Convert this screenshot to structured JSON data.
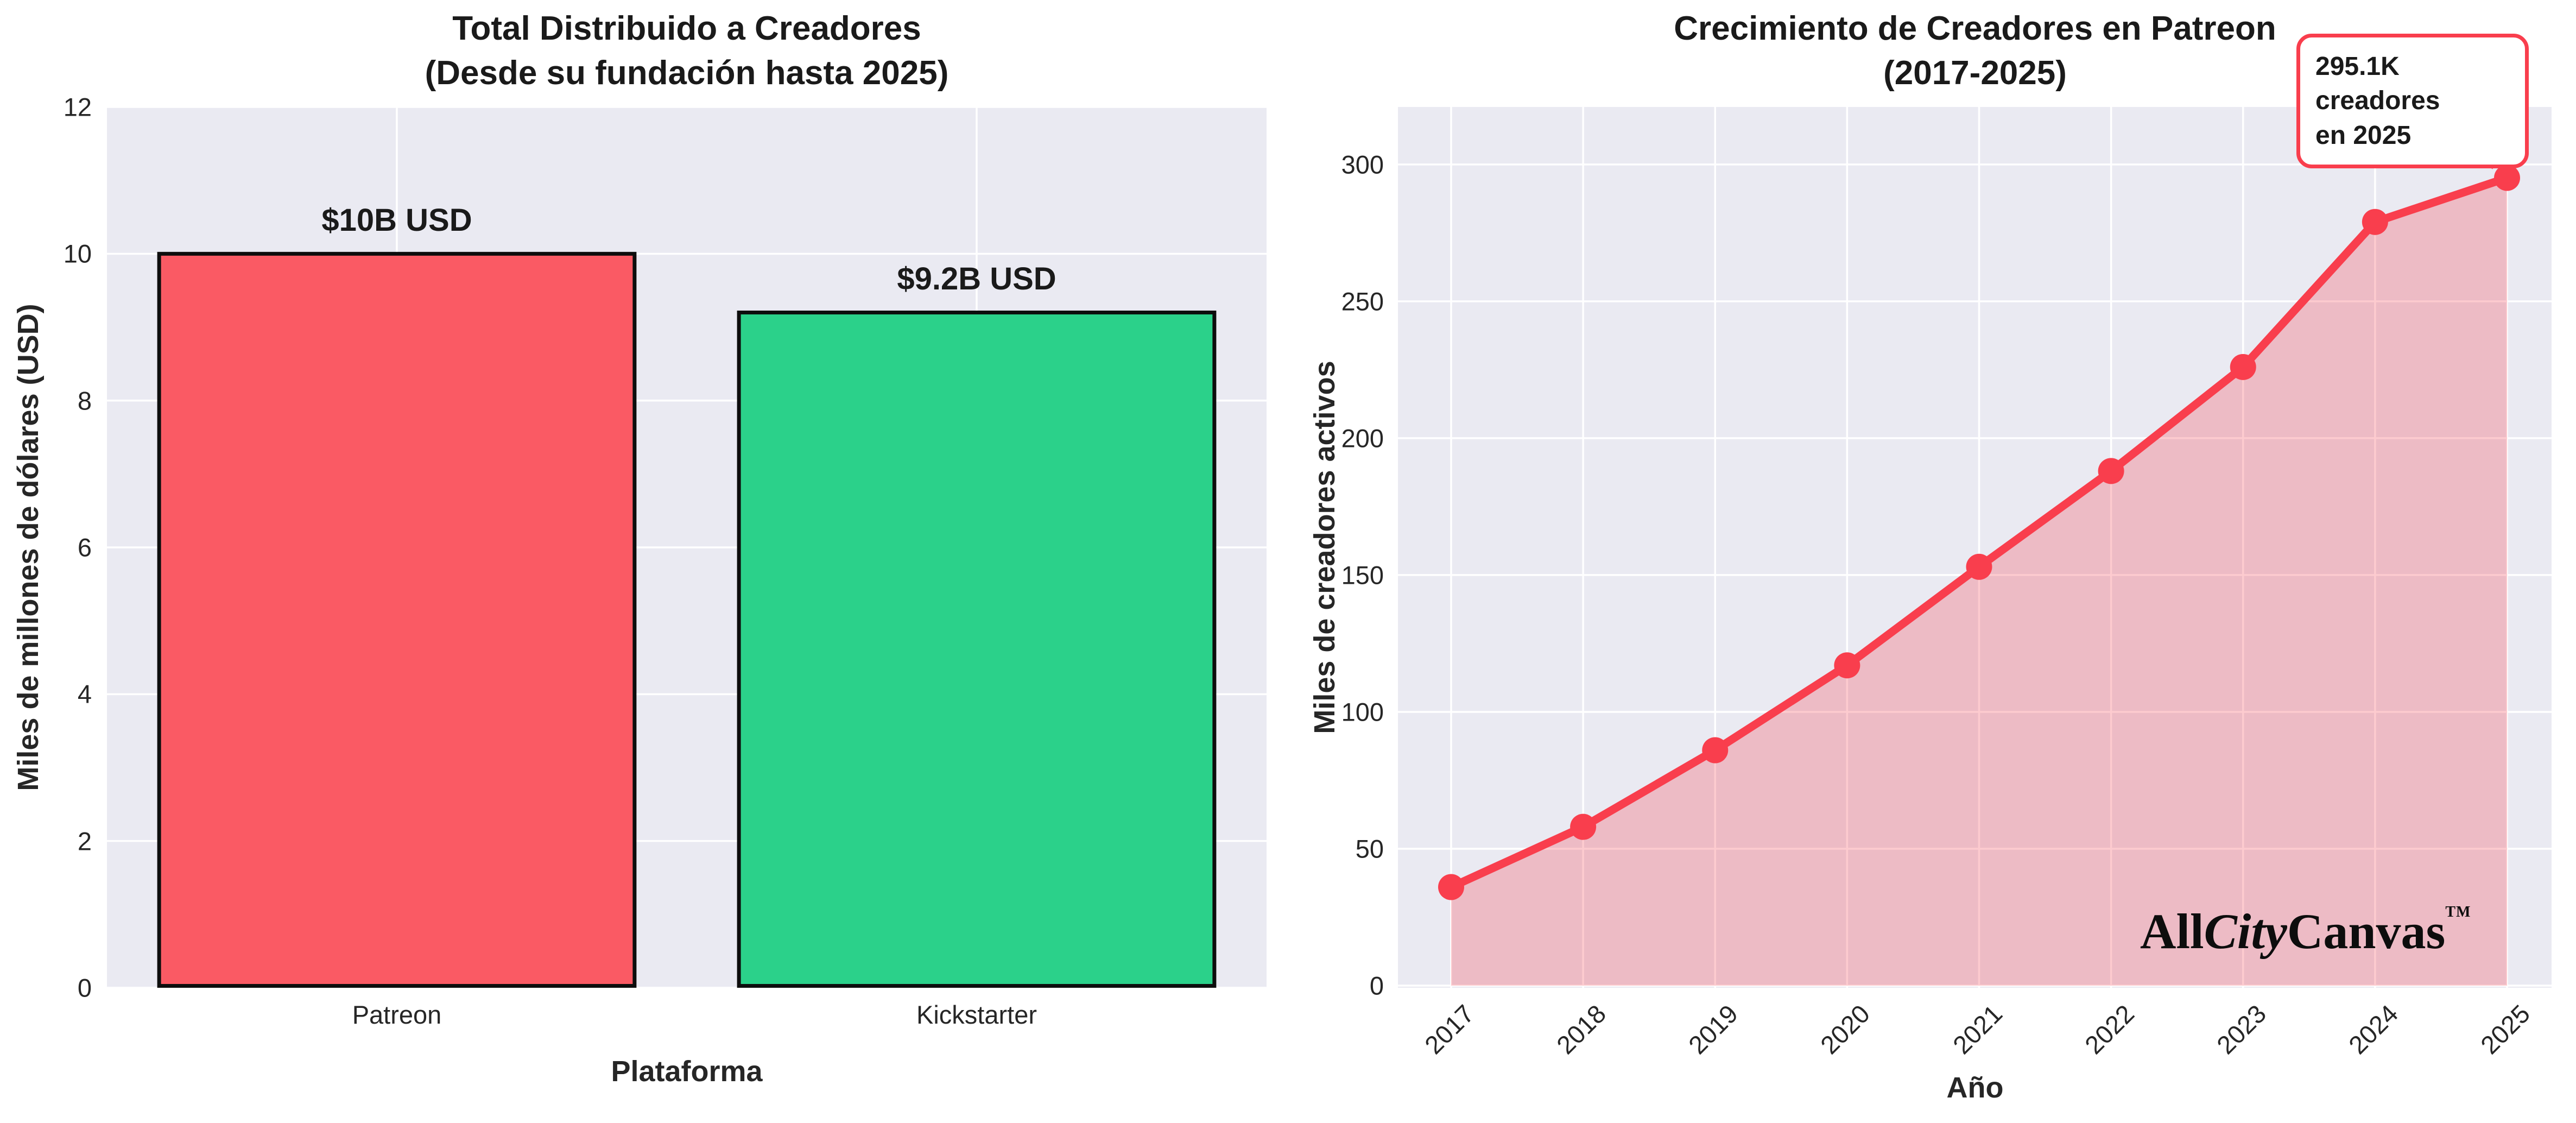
{
  "page": {
    "background": "#ffffff",
    "plot_background": "#eaeaf2",
    "grid_color": "#ffffff"
  },
  "left_chart": {
    "title_line1": "Total Distribuido a Creadores",
    "title_line2": "(Desde su fundación hasta 2025)",
    "ylabel": "Miles de millones de dólares (USD)",
    "xlabel": "Plataforma"
  },
  "right_chart": {
    "title_line1": "Crecimiento de Creadores en Patreon",
    "title_line2": "(2017-2025)",
    "ylabel": "Miles de creadores activos",
    "xlabel": "Año",
    "annotation": {
      "line1": "295.1K creadores",
      "line2": "en 2025"
    }
  },
  "watermark": {
    "part1": "All",
    "part2": "City",
    "part3": "Canvas",
    "tm": "TM"
  },
  "chart_data": [
    {
      "type": "bar",
      "title": "Total Distribuido a Creadores (Desde su fundación hasta 2025)",
      "categories": [
        "Patreon",
        "Kickstarter"
      ],
      "values": [
        10,
        9.2
      ],
      "bar_labels": [
        "$10B USD",
        "$9.2B USD"
      ],
      "bar_colors": [
        "#fa5a64",
        "#2bd18a"
      ],
      "bar_edge_color": "#0d0d0d",
      "xlabel": "Plataforma",
      "ylabel": "Miles de millones de dólares (USD)",
      "ylim": [
        0,
        12
      ],
      "yticks": [
        0,
        2,
        4,
        6,
        8,
        10,
        12
      ],
      "grid": true,
      "legend": false
    },
    {
      "type": "line",
      "title": "Crecimiento de Creadores en Patreon (2017-2025)",
      "x": [
        2017,
        2018,
        2019,
        2020,
        2021,
        2022,
        2023,
        2024,
        2025
      ],
      "values": [
        36,
        58,
        86,
        117,
        153,
        188,
        226,
        279,
        295.1
      ],
      "line_color": "#f93e4d",
      "marker": "circle",
      "area_fill": true,
      "fill_alpha": 0.27,
      "xlabel": "Año",
      "ylabel": "Miles de creadores activos",
      "ylim": [
        0,
        321
      ],
      "yticks": [
        0,
        50,
        100,
        150,
        200,
        250,
        300
      ],
      "grid": true,
      "legend": false,
      "annotation": {
        "text": "295.1K creadores en 2025",
        "target_x": 2025,
        "target_value": 295.1
      }
    }
  ]
}
